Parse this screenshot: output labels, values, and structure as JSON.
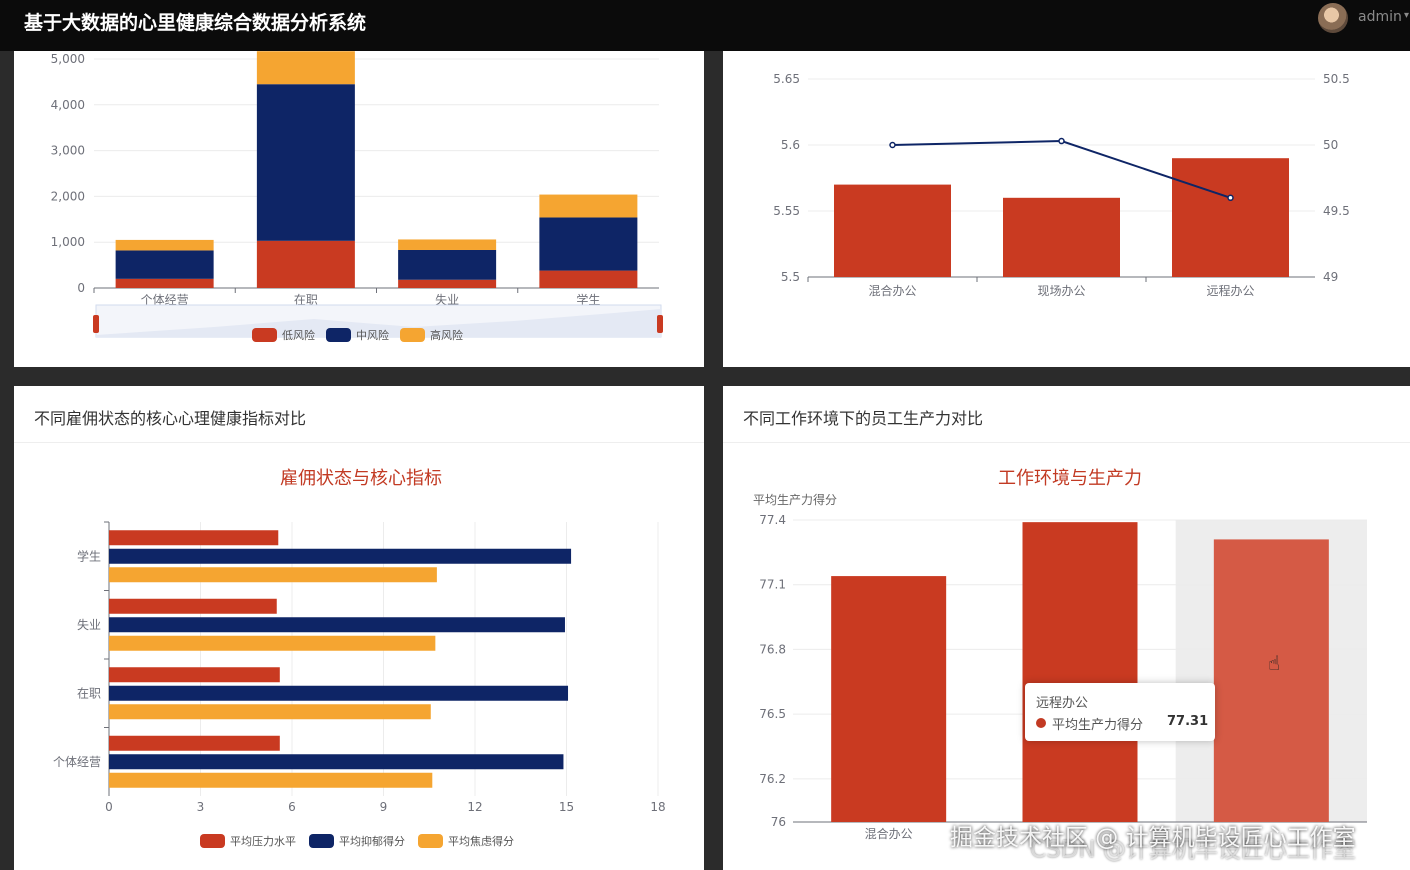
{
  "app": {
    "title": "基于大数据的心里健康综合数据分析系统",
    "user": "admin"
  },
  "colors": {
    "low": "#c93a21",
    "mid": "#0e2566",
    "high": "#f5a531",
    "accent": "#c23a23"
  },
  "panels": {
    "risk": {
      "y_ticks": [
        "5,000",
        "4,000",
        "3,000",
        "2,000",
        "1,000",
        "0"
      ],
      "legend": [
        "低风险",
        "中风险",
        "高风险"
      ]
    },
    "env_top": {
      "y_left_ticks": [
        "5.65",
        "5.6",
        "5.55",
        "5.5"
      ],
      "y_right_ticks": [
        "50.5",
        "50",
        "49.5",
        "49"
      ]
    },
    "employment": {
      "header": "不同雇佣状态的核心心理健康指标对比",
      "chart_title": "雇佣状态与核心指标",
      "legend": [
        "平均压力水平",
        "平均抑郁得分",
        "平均焦虑得分"
      ]
    },
    "productivity": {
      "header": "不同工作环境下的员工生产力对比",
      "chart_title": "工作环境与生产力",
      "y_name": "平均生产力得分",
      "y_ticks": [
        "77.4",
        "77.1",
        "76.8",
        "76.5",
        "76.2",
        "76"
      ],
      "tooltip": {
        "category": "远程办公",
        "series": "平均生产力得分",
        "value": "77.31"
      }
    }
  },
  "watermark": {
    "line1": "掘金技术社区 @ 计算机毕设匠心工作室",
    "line2": "CSDN @计算机毕设匠心工作室"
  },
  "chart_data": [
    {
      "type": "bar",
      "stacked": true,
      "categories": [
        "个体经营",
        "在职",
        "失业",
        "学生"
      ],
      "series": [
        {
          "name": "低风险",
          "values": [
            200,
            1030,
            180,
            380
          ]
        },
        {
          "name": "中风险",
          "values": [
            620,
            3420,
            650,
            1160
          ]
        },
        {
          "name": "高风险",
          "values": [
            230,
            720,
            230,
            500
          ]
        }
      ],
      "ylim": [
        0,
        5000
      ]
    },
    {
      "type": "bar",
      "categories": [
        "混合办公",
        "现场办公",
        "远程办公"
      ],
      "series": [
        {
          "values": [
            5.57,
            5.56,
            5.59
          ]
        },
        {
          "type": "line",
          "values": [
            50.0,
            50.03,
            49.6
          ]
        }
      ],
      "ylim": [
        5.5,
        5.65
      ],
      "ylim_right": [
        49,
        50.5
      ]
    },
    {
      "type": "bar",
      "orientation": "horizontal",
      "title": "雇佣状态与核心指标",
      "categories": [
        "个体经营",
        "在职",
        "失业",
        "学生"
      ],
      "series": [
        {
          "name": "平均压力水平",
          "values": [
            5.6,
            5.6,
            5.5,
            5.55
          ]
        },
        {
          "name": "平均抑郁得分",
          "values": [
            14.9,
            15.05,
            14.95,
            15.15
          ]
        },
        {
          "name": "平均焦虑得分",
          "values": [
            10.6,
            10.55,
            10.7,
            10.75
          ]
        }
      ],
      "x_ticks": [
        0,
        3,
        6,
        9,
        12,
        15,
        18
      ],
      "xlim": [
        0,
        18
      ]
    },
    {
      "type": "bar",
      "title": "工作环境与生产力",
      "ylabel": "平均生产力得分",
      "categories": [
        "混合办公",
        "现场办公",
        "远程办公"
      ],
      "values": [
        77.14,
        77.39,
        77.31
      ],
      "ylim": [
        76,
        77.4
      ]
    }
  ]
}
